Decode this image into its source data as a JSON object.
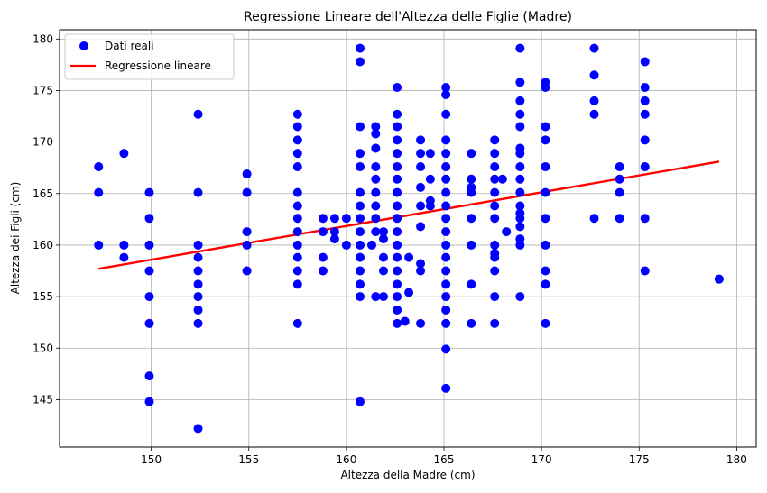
{
  "chart_data": {
    "type": "scatter",
    "title": "Regressione Lineare dell'Altezza delle Figlie (Madre)",
    "xlabel": "Altezza della Madre (cm)",
    "ylabel": "Altezza dei Figli (cm)",
    "xlim": [
      145.3,
      181.0
    ],
    "ylim": [
      140.4,
      180.9
    ],
    "xticks": [
      150,
      155,
      160,
      165,
      170,
      175,
      180
    ],
    "yticks": [
      145,
      150,
      155,
      160,
      165,
      170,
      175,
      180
    ],
    "grid": true,
    "legend_position": "top-left",
    "colors": {
      "points": "#0000ff",
      "line": "#ff0000",
      "grid": "#b0b0b0"
    },
    "series": [
      {
        "name": "Dati reali",
        "kind": "scatter",
        "points": [
          [
            147.3,
            167.6
          ],
          [
            147.3,
            165.1
          ],
          [
            147.3,
            160.0
          ],
          [
            148.6,
            168.9
          ],
          [
            148.6,
            160.0
          ],
          [
            148.6,
            158.8
          ],
          [
            149.9,
            165.1
          ],
          [
            149.9,
            162.6
          ],
          [
            149.9,
            160.0
          ],
          [
            149.9,
            157.5
          ],
          [
            149.9,
            155.0
          ],
          [
            149.9,
            152.4
          ],
          [
            149.9,
            147.3
          ],
          [
            149.9,
            144.8
          ],
          [
            152.4,
            172.7
          ],
          [
            152.4,
            165.1
          ],
          [
            152.4,
            160.0
          ],
          [
            152.4,
            158.8
          ],
          [
            152.4,
            157.5
          ],
          [
            152.4,
            156.2
          ],
          [
            152.4,
            155.0
          ],
          [
            152.4,
            153.7
          ],
          [
            152.4,
            152.4
          ],
          [
            152.4,
            142.2
          ],
          [
            154.9,
            166.9
          ],
          [
            154.9,
            165.1
          ],
          [
            154.9,
            161.3
          ],
          [
            154.9,
            160.0
          ],
          [
            154.9,
            157.5
          ],
          [
            157.5,
            172.7
          ],
          [
            157.5,
            171.5
          ],
          [
            157.5,
            170.2
          ],
          [
            157.5,
            168.9
          ],
          [
            157.5,
            167.6
          ],
          [
            157.5,
            165.1
          ],
          [
            157.5,
            163.8
          ],
          [
            157.5,
            162.6
          ],
          [
            157.5,
            161.3
          ],
          [
            157.5,
            160.0
          ],
          [
            157.5,
            158.8
          ],
          [
            157.5,
            157.5
          ],
          [
            157.5,
            156.2
          ],
          [
            157.5,
            152.4
          ],
          [
            158.8,
            162.6
          ],
          [
            158.8,
            161.3
          ],
          [
            158.8,
            158.8
          ],
          [
            158.8,
            157.5
          ],
          [
            159.4,
            162.6
          ],
          [
            159.4,
            161.3
          ],
          [
            159.4,
            160.6
          ],
          [
            160.0,
            162.6
          ],
          [
            160.0,
            160.0
          ],
          [
            160.7,
            179.1
          ],
          [
            160.7,
            177.8
          ],
          [
            160.7,
            171.5
          ],
          [
            160.7,
            168.9
          ],
          [
            160.7,
            167.6
          ],
          [
            160.7,
            165.1
          ],
          [
            160.7,
            163.8
          ],
          [
            160.7,
            162.6
          ],
          [
            160.7,
            161.3
          ],
          [
            160.7,
            160.0
          ],
          [
            160.7,
            158.8
          ],
          [
            160.7,
            157.5
          ],
          [
            160.7,
            156.2
          ],
          [
            160.7,
            155.0
          ],
          [
            160.7,
            144.8
          ],
          [
            161.3,
            160.0
          ],
          [
            161.9,
            161.3
          ],
          [
            161.9,
            160.6
          ],
          [
            161.9,
            158.8
          ],
          [
            161.9,
            157.5
          ],
          [
            161.9,
            155.0
          ],
          [
            161.5,
            171.5
          ],
          [
            161.5,
            170.8
          ],
          [
            161.5,
            169.4
          ],
          [
            161.5,
            167.6
          ],
          [
            161.5,
            166.4
          ],
          [
            161.5,
            165.1
          ],
          [
            161.5,
            163.8
          ],
          [
            161.5,
            162.6
          ],
          [
            161.5,
            161.3
          ],
          [
            161.5,
            155.0
          ],
          [
            162.6,
            175.3
          ],
          [
            162.6,
            172.7
          ],
          [
            162.6,
            171.5
          ],
          [
            162.6,
            170.2
          ],
          [
            162.6,
            168.9
          ],
          [
            162.6,
            167.6
          ],
          [
            162.6,
            166.4
          ],
          [
            162.6,
            165.1
          ],
          [
            162.6,
            163.8
          ],
          [
            162.6,
            162.6
          ],
          [
            162.6,
            161.3
          ],
          [
            162.6,
            160.0
          ],
          [
            162.6,
            158.8
          ],
          [
            162.6,
            157.5
          ],
          [
            162.6,
            156.2
          ],
          [
            162.6,
            155.0
          ],
          [
            162.6,
            153.7
          ],
          [
            162.6,
            152.4
          ],
          [
            163.2,
            158.8
          ],
          [
            163.2,
            155.4
          ],
          [
            163.0,
            152.6
          ],
          [
            163.8,
            170.2
          ],
          [
            163.8,
            168.9
          ],
          [
            163.8,
            167.6
          ],
          [
            163.8,
            165.6
          ],
          [
            163.8,
            163.8
          ],
          [
            163.8,
            161.8
          ],
          [
            163.8,
            158.2
          ],
          [
            163.8,
            157.5
          ],
          [
            163.8,
            152.4
          ],
          [
            164.3,
            168.9
          ],
          [
            164.3,
            166.4
          ],
          [
            164.3,
            164.3
          ],
          [
            164.3,
            163.8
          ],
          [
            165.1,
            175.3
          ],
          [
            165.1,
            174.6
          ],
          [
            165.1,
            172.7
          ],
          [
            165.1,
            170.2
          ],
          [
            165.1,
            168.9
          ],
          [
            165.1,
            167.6
          ],
          [
            165.1,
            166.4
          ],
          [
            165.1,
            165.1
          ],
          [
            165.1,
            163.8
          ],
          [
            165.1,
            162.6
          ],
          [
            165.1,
            161.3
          ],
          [
            165.1,
            160.0
          ],
          [
            165.1,
            158.8
          ],
          [
            165.1,
            157.5
          ],
          [
            165.1,
            156.2
          ],
          [
            165.1,
            155.0
          ],
          [
            165.1,
            153.7
          ],
          [
            165.1,
            152.4
          ],
          [
            165.1,
            149.9
          ],
          [
            165.1,
            146.1
          ],
          [
            166.4,
            168.9
          ],
          [
            166.4,
            166.4
          ],
          [
            166.4,
            165.6
          ],
          [
            166.4,
            165.1
          ],
          [
            166.4,
            162.6
          ],
          [
            166.4,
            160.0
          ],
          [
            166.4,
            156.2
          ],
          [
            166.4,
            152.4
          ],
          [
            167.6,
            170.2
          ],
          [
            167.6,
            168.9
          ],
          [
            167.6,
            167.6
          ],
          [
            167.6,
            166.4
          ],
          [
            167.6,
            165.1
          ],
          [
            167.6,
            163.8
          ],
          [
            167.6,
            162.6
          ],
          [
            167.6,
            160.0
          ],
          [
            167.6,
            159.2
          ],
          [
            167.6,
            158.8
          ],
          [
            167.6,
            157.5
          ],
          [
            167.6,
            155.0
          ],
          [
            167.6,
            152.4
          ],
          [
            168.0,
            166.4
          ],
          [
            168.2,
            161.3
          ],
          [
            168.9,
            179.1
          ],
          [
            168.9,
            175.8
          ],
          [
            168.9,
            174.0
          ],
          [
            168.9,
            172.7
          ],
          [
            168.9,
            171.5
          ],
          [
            168.9,
            169.4
          ],
          [
            168.9,
            168.9
          ],
          [
            168.9,
            167.6
          ],
          [
            168.9,
            166.4
          ],
          [
            168.9,
            165.1
          ],
          [
            168.9,
            163.8
          ],
          [
            168.9,
            163.1
          ],
          [
            168.9,
            162.6
          ],
          [
            168.9,
            161.8
          ],
          [
            168.9,
            160.6
          ],
          [
            168.9,
            160.0
          ],
          [
            168.9,
            155.0
          ],
          [
            170.2,
            175.8
          ],
          [
            170.2,
            175.3
          ],
          [
            170.2,
            171.5
          ],
          [
            170.2,
            170.2
          ],
          [
            170.2,
            167.6
          ],
          [
            170.2,
            165.1
          ],
          [
            170.2,
            162.6
          ],
          [
            170.2,
            160.0
          ],
          [
            170.2,
            157.5
          ],
          [
            170.2,
            156.2
          ],
          [
            170.2,
            152.4
          ],
          [
            172.7,
            179.1
          ],
          [
            172.7,
            176.5
          ],
          [
            172.7,
            174.0
          ],
          [
            172.7,
            172.7
          ],
          [
            172.7,
            162.6
          ],
          [
            174.0,
            167.6
          ],
          [
            174.0,
            166.4
          ],
          [
            174.0,
            165.1
          ],
          [
            174.0,
            162.6
          ],
          [
            175.3,
            177.8
          ],
          [
            175.3,
            175.3
          ],
          [
            175.3,
            174.0
          ],
          [
            175.3,
            172.7
          ],
          [
            175.3,
            170.2
          ],
          [
            175.3,
            167.6
          ],
          [
            175.3,
            162.6
          ],
          [
            175.3,
            157.5
          ],
          [
            179.1,
            156.7
          ]
        ]
      },
      {
        "name": "Regressione lineare",
        "kind": "line",
        "points": [
          [
            147.3,
            157.7
          ],
          [
            179.1,
            168.1
          ]
        ]
      }
    ]
  }
}
